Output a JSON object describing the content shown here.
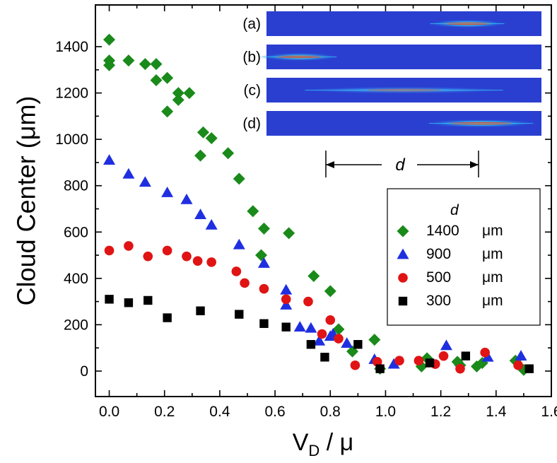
{
  "chart_data": {
    "type": "scatter",
    "title": "",
    "xlabel": "V",
    "xlabel_sub": "D",
    "xlabel_suffix": " / μ",
    "ylabel": "Cloud Center (μm)",
    "xlim": [
      -0.05,
      1.6
    ],
    "ylim": [
      -110,
      1580
    ],
    "x_ticks": [
      0.0,
      0.2,
      0.4,
      0.6,
      0.8,
      1.0,
      1.2,
      1.4,
      1.6
    ],
    "x_tick_labels": [
      "0.0",
      "0.2",
      "0.4",
      "0.6",
      "0.8",
      "1.0",
      "1.2",
      "1.4",
      "1.6"
    ],
    "y_ticks": [
      0,
      200,
      400,
      600,
      800,
      1000,
      1200,
      1400
    ],
    "y_tick_labels": [
      "0",
      "200",
      "400",
      "600",
      "800",
      "1000",
      "1200",
      "1400"
    ],
    "legend": {
      "title": "d",
      "position": "right-middle"
    },
    "series": [
      {
        "name": "1400",
        "unit": "μm",
        "marker": "diamond",
        "color": "#1a8a1a",
        "points": [
          [
            0.0,
            1430
          ],
          [
            0.0,
            1340
          ],
          [
            0.0,
            1320
          ],
          [
            0.07,
            1340
          ],
          [
            0.13,
            1325
          ],
          [
            0.17,
            1325
          ],
          [
            0.17,
            1255
          ],
          [
            0.21,
            1265
          ],
          [
            0.21,
            1120
          ],
          [
            0.25,
            1200
          ],
          [
            0.25,
            1170
          ],
          [
            0.29,
            1200
          ],
          [
            0.33,
            930
          ],
          [
            0.34,
            1030
          ],
          [
            0.37,
            1005
          ],
          [
            0.43,
            940
          ],
          [
            0.47,
            830
          ],
          [
            0.52,
            690
          ],
          [
            0.55,
            500
          ],
          [
            0.56,
            615
          ],
          [
            0.65,
            595
          ],
          [
            0.74,
            410
          ],
          [
            0.8,
            345
          ],
          [
            0.83,
            180
          ],
          [
            0.88,
            85
          ],
          [
            0.96,
            135
          ],
          [
            0.98,
            10
          ],
          [
            1.13,
            20
          ],
          [
            1.15,
            55
          ],
          [
            1.26,
            40
          ],
          [
            1.27,
            25
          ],
          [
            1.33,
            20
          ],
          [
            1.35,
            35
          ],
          [
            1.47,
            45
          ],
          [
            1.5,
            5
          ]
        ]
      },
      {
        "name": "900",
        "unit": "μm",
        "marker": "triangle",
        "color": "#1f2fe0",
        "points": [
          [
            0.0,
            910
          ],
          [
            0.07,
            850
          ],
          [
            0.13,
            815
          ],
          [
            0.21,
            770
          ],
          [
            0.28,
            740
          ],
          [
            0.33,
            675
          ],
          [
            0.37,
            630
          ],
          [
            0.47,
            545
          ],
          [
            0.56,
            465
          ],
          [
            0.64,
            350
          ],
          [
            0.64,
            285
          ],
          [
            0.69,
            190
          ],
          [
            0.73,
            185
          ],
          [
            0.76,
            130
          ],
          [
            0.8,
            150
          ],
          [
            0.81,
            160
          ],
          [
            0.86,
            120
          ],
          [
            0.96,
            50
          ],
          [
            1.03,
            30
          ],
          [
            1.22,
            110
          ],
          [
            1.37,
            60
          ],
          [
            1.49,
            65
          ]
        ]
      },
      {
        "name": "500",
        "unit": "μm",
        "marker": "circle",
        "color": "#e01414",
        "points": [
          [
            0.0,
            520
          ],
          [
            0.07,
            540
          ],
          [
            0.14,
            495
          ],
          [
            0.21,
            520
          ],
          [
            0.28,
            495
          ],
          [
            0.32,
            475
          ],
          [
            0.37,
            470
          ],
          [
            0.46,
            430
          ],
          [
            0.49,
            380
          ],
          [
            0.56,
            355
          ],
          [
            0.64,
            310
          ],
          [
            0.72,
            300
          ],
          [
            0.77,
            160
          ],
          [
            0.8,
            220
          ],
          [
            0.83,
            140
          ],
          [
            0.89,
            25
          ],
          [
            0.97,
            40
          ],
          [
            1.05,
            45
          ],
          [
            1.12,
            45
          ],
          [
            1.18,
            30
          ],
          [
            1.21,
            65
          ],
          [
            1.27,
            10
          ],
          [
            1.36,
            80
          ],
          [
            1.48,
            25
          ]
        ]
      },
      {
        "name": "300",
        "unit": "μm",
        "marker": "square",
        "color": "#000000",
        "points": [
          [
            0.0,
            310
          ],
          [
            0.07,
            295
          ],
          [
            0.14,
            305
          ],
          [
            0.21,
            230
          ],
          [
            0.33,
            260
          ],
          [
            0.47,
            245
          ],
          [
            0.56,
            205
          ],
          [
            0.64,
            190
          ],
          [
            0.73,
            115
          ],
          [
            0.78,
            60
          ],
          [
            0.9,
            115
          ],
          [
            0.98,
            10
          ],
          [
            1.16,
            35
          ],
          [
            1.29,
            65
          ],
          [
            1.52,
            10
          ]
        ]
      }
    ],
    "inset": {
      "panels": [
        {
          "label": "(a)",
          "cloud_center_fraction": 0.73,
          "cloud_width_fraction": 0.3,
          "intensity": "strong"
        },
        {
          "label": "(b)",
          "cloud_center_fraction": 0.12,
          "cloud_width_fraction": 0.3,
          "intensity": "strong"
        },
        {
          "label": "(c)",
          "cloud_center_fraction": 0.5,
          "cloud_width_fraction": 0.8,
          "intensity": "diffuse"
        },
        {
          "label": "(d)",
          "cloud_center_fraction": 0.78,
          "cloud_width_fraction": 0.42,
          "intensity": "medium"
        }
      ],
      "dimension_label": "d"
    },
    "colors": {
      "panel_background": "#2a3fd0",
      "panel_glow": "#33e0ff",
      "panel_core": "#e03020"
    }
  }
}
